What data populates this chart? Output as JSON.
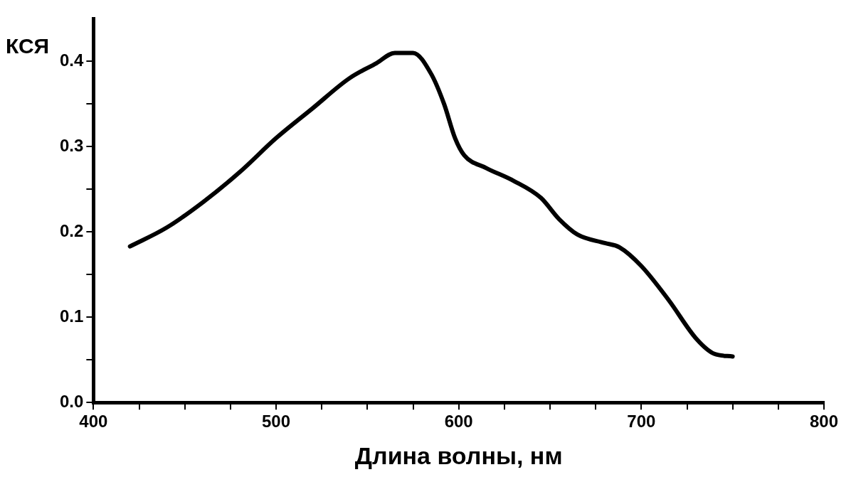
{
  "chart_data": {
    "type": "line",
    "xlabel": "Длина волны, нм",
    "ylabel": "КСЯ",
    "xlim": [
      400,
      800
    ],
    "ylim": [
      0,
      0.45
    ],
    "xticks": [
      400,
      {
        "value": 425,
        "label": null
      },
      {
        "value": 450,
        "label": null
      },
      {
        "value": 475,
        "label": null
      },
      500,
      {
        "value": 525,
        "label": null
      },
      {
        "value": 550,
        "label": null
      },
      {
        "value": 575,
        "label": null
      },
      600,
      {
        "value": 625,
        "label": null
      },
      {
        "value": 650,
        "label": null
      },
      {
        "value": 675,
        "label": null
      },
      700,
      {
        "value": 725,
        "label": null
      },
      {
        "value": 750,
        "label": null
      },
      {
        "value": 775,
        "label": null
      },
      800
    ],
    "yticks": [
      {
        "value": 0,
        "label": "0.0"
      },
      {
        "value": 0.05,
        "label": null
      },
      0.1,
      {
        "value": 0.15,
        "label": null
      },
      0.2,
      {
        "value": 0.25,
        "label": null
      },
      0.3,
      {
        "value": 0.35,
        "label": null
      },
      0.4
    ],
    "grid": false,
    "legend": false,
    "marker": "none",
    "line_style": "solid",
    "series": [
      {
        "color": "#000000",
        "x": [
          420,
          440,
          460,
          480,
          500,
          520,
          540,
          555,
          565,
          575,
          585,
          592,
          598,
          603,
          615,
          630,
          645,
          655,
          665,
          680,
          688,
          700,
          715,
          730,
          740,
          750
        ],
        "values": [
          0.183,
          0.205,
          0.235,
          0.27,
          0.31,
          0.345,
          0.38,
          0.398,
          0.41,
          0.41,
          0.385,
          0.35,
          0.31,
          0.29,
          0.275,
          0.26,
          0.24,
          0.215,
          0.197,
          0.187,
          0.182,
          0.16,
          0.12,
          0.075,
          0.057,
          0.054
        ]
      }
    ]
  }
}
